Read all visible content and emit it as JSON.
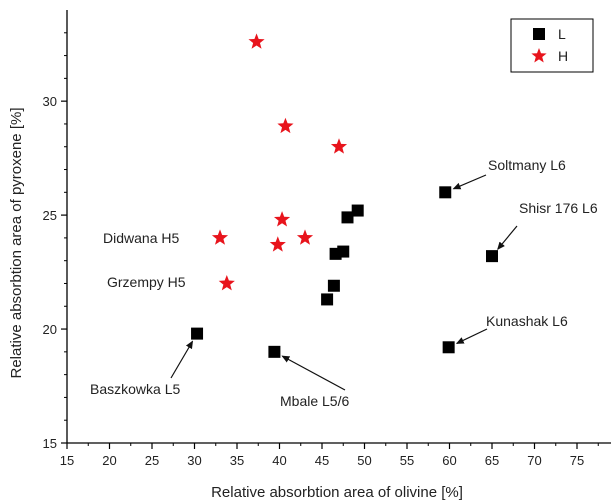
{
  "chart_data": {
    "type": "scatter",
    "xlabel": "Relative absorbtion area of olivine [%]",
    "ylabel": "Relative absorbtion area of pyroxene [%]",
    "xlim": [
      15,
      79
    ],
    "ylim": [
      15,
      34
    ],
    "x_ticks": [
      "15",
      "20",
      "25",
      "30",
      "35",
      "40",
      "45",
      "50",
      "55",
      "60",
      "65",
      "70",
      "75"
    ],
    "y_ticks": [
      "15",
      "20",
      "25",
      "30"
    ],
    "legend_position": "top-right",
    "series": [
      {
        "name": "L",
        "marker": "square",
        "color": "#000000",
        "points": [
          {
            "x": 30.3,
            "y": 19.8
          },
          {
            "x": 39.4,
            "y": 19.0
          },
          {
            "x": 45.6,
            "y": 21.3
          },
          {
            "x": 46.4,
            "y": 21.9
          },
          {
            "x": 46.6,
            "y": 23.3
          },
          {
            "x": 47.5,
            "y": 23.4
          },
          {
            "x": 48.0,
            "y": 24.9
          },
          {
            "x": 49.2,
            "y": 25.2
          },
          {
            "x": 59.5,
            "y": 26.0
          },
          {
            "x": 59.9,
            "y": 19.2
          },
          {
            "x": 65.0,
            "y": 23.2
          }
        ]
      },
      {
        "name": "H",
        "marker": "star",
        "color": "#e8141c",
        "points": [
          {
            "x": 37.3,
            "y": 32.6
          },
          {
            "x": 40.7,
            "y": 28.9
          },
          {
            "x": 47.0,
            "y": 28.0
          },
          {
            "x": 40.3,
            "y": 24.8
          },
          {
            "x": 33.0,
            "y": 24.0
          },
          {
            "x": 39.8,
            "y": 23.7
          },
          {
            "x": 43.0,
            "y": 24.0
          },
          {
            "x": 33.8,
            "y": 22.0
          }
        ]
      }
    ],
    "annotations": [
      {
        "text": "Soltmany L6",
        "point": {
          "x": 59.5,
          "y": 26.0
        },
        "arrow": true
      },
      {
        "text": "Shisr 176 L6",
        "point": {
          "x": 65.0,
          "y": 23.2
        },
        "arrow": true
      },
      {
        "text": "Kunashak L6",
        "point": {
          "x": 59.9,
          "y": 19.2
        },
        "arrow": true
      },
      {
        "text": "Mbale L5/6",
        "point": {
          "x": 39.4,
          "y": 19.0
        },
        "arrow": true
      },
      {
        "text": "Baszkowka L5",
        "point": {
          "x": 30.3,
          "y": 19.8
        },
        "arrow": true
      },
      {
        "text": "Didwana H5",
        "point": {
          "x": 33.0,
          "y": 24.0
        },
        "arrow": false
      },
      {
        "text": "Grzempy H5",
        "point": {
          "x": 33.8,
          "y": 22.0
        },
        "arrow": false
      }
    ]
  }
}
